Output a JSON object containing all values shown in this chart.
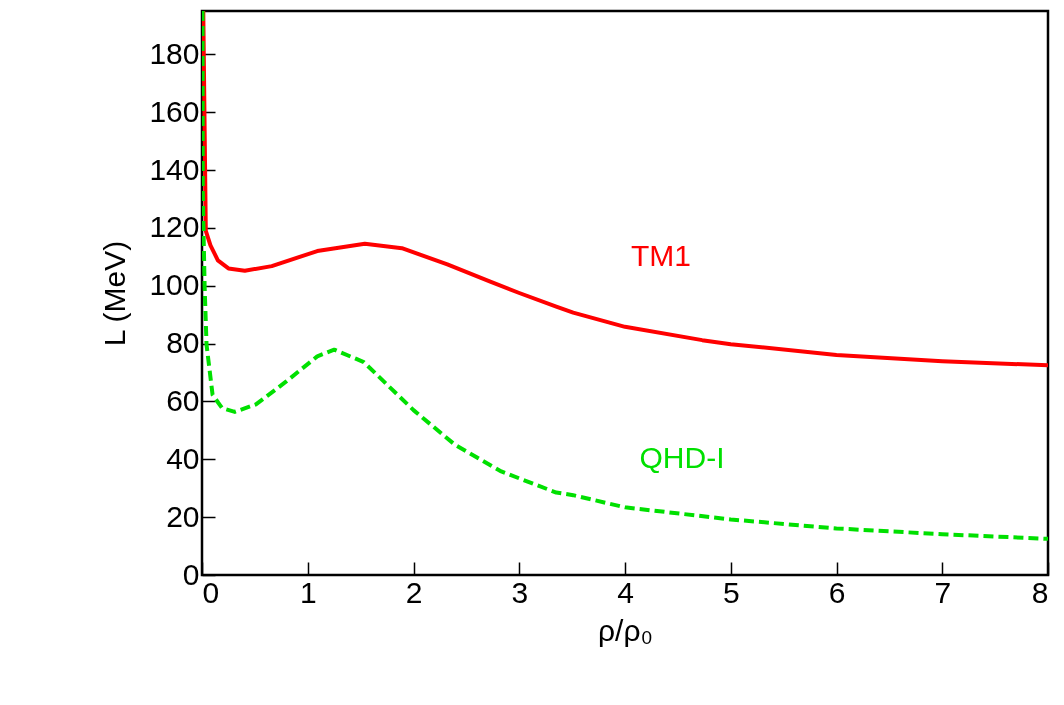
{
  "chart_data": {
    "type": "line",
    "xlabel": "ρ/ρ₀",
    "ylabel": "L (MeV)",
    "xlim": [
      0,
      8
    ],
    "xticks": [
      0,
      1,
      2,
      3,
      4,
      5,
      6,
      7,
      8
    ],
    "ylim": [
      0,
      195
    ],
    "yticks": [
      0,
      20,
      40,
      60,
      80,
      100,
      120,
      140,
      160,
      180
    ],
    "grid": false,
    "marker": "none",
    "series": [
      {
        "color": "#ff0000",
        "line_style": "solid",
        "x": [
          0.012,
          0.036,
          0.08,
          0.15,
          0.25,
          0.405,
          0.66,
          1.09,
          1.54,
          1.89,
          2.32,
          2.72,
          3.0,
          3.35,
          3.51,
          4.0,
          4.73,
          5.0,
          6.0,
          7.0,
          8.0
        ],
        "values": [
          195,
          119,
          114,
          108.8,
          106,
          105.2,
          106.8,
          112,
          114.5,
          113,
          107.4,
          101.5,
          97.5,
          92.8,
          90.7,
          85.8,
          81.2,
          79.8,
          76.1,
          73.9,
          72.5
        ]
      },
      {
        "color": "#00e000",
        "line_style": "dashed",
        "x": [
          0.005,
          0.007,
          0.025,
          0.043,
          0.1,
          0.19,
          0.31,
          0.51,
          0.8,
          1.09,
          1.25,
          1.53,
          2.0,
          2.39,
          2.83,
          3.35,
          3.51,
          4.0,
          5.0,
          6.0,
          7.0,
          8.0
        ],
        "values": [
          195,
          132.6,
          99.5,
          79.6,
          62.3,
          57.7,
          56.4,
          59,
          67,
          75.6,
          77.9,
          73.6,
          57,
          45.1,
          35.8,
          28.5,
          27.6,
          23.4,
          19.2,
          16.1,
          14.1,
          12.5
        ]
      }
    ],
    "annotations": [
      "TM1",
      "QHD-I"
    ]
  }
}
